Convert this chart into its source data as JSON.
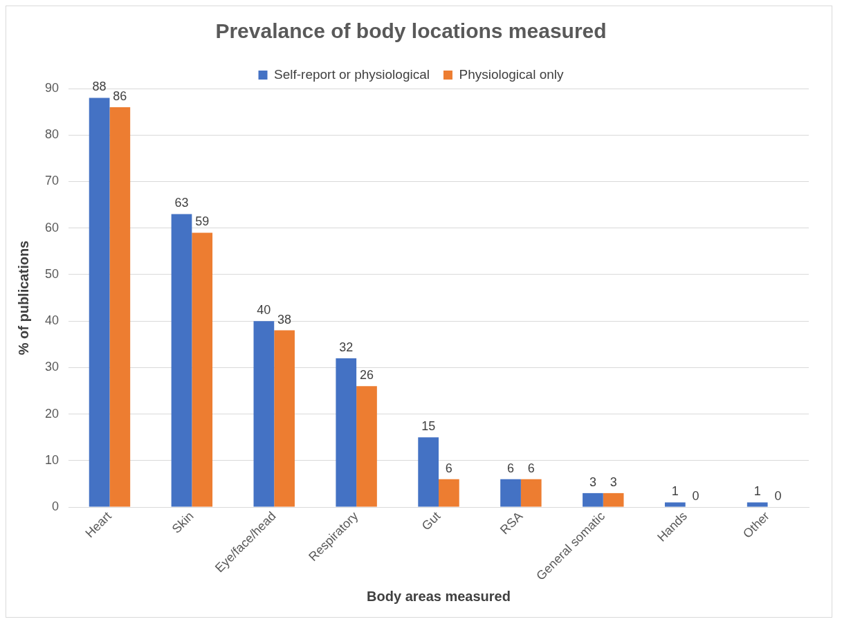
{
  "chart_data": {
    "type": "bar",
    "title": "Prevalance of body locations measured",
    "xlabel": "Body areas measured",
    "ylabel": "% of publications",
    "categories": [
      "Heart",
      "Skin",
      "Eye/face/head",
      "Respiratory",
      "Gut",
      "RSA",
      "General somatic",
      "Hands",
      "Other"
    ],
    "series": [
      {
        "name": "Self-report or physiological",
        "color": "#4472c4",
        "values": [
          88,
          63,
          40,
          32,
          15,
          6,
          3,
          1,
          1
        ]
      },
      {
        "name": "Physiological only",
        "color": "#ed7d31",
        "values": [
          86,
          59,
          38,
          26,
          6,
          6,
          3,
          0,
          0
        ]
      }
    ],
    "ylim": [
      0,
      90
    ],
    "yticks": [
      0,
      10,
      20,
      30,
      40,
      50,
      60,
      70,
      80,
      90
    ],
    "grid": "y",
    "legend": "top",
    "data_labels": true
  }
}
